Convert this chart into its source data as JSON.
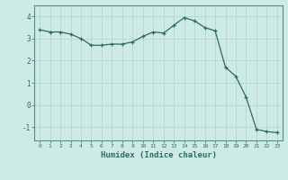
{
  "x": [
    0,
    1,
    2,
    3,
    4,
    5,
    6,
    7,
    8,
    9,
    10,
    11,
    12,
    13,
    14,
    15,
    16,
    17,
    18,
    19,
    20,
    21,
    22,
    23
  ],
  "y": [
    3.4,
    3.3,
    3.3,
    3.2,
    3.0,
    2.7,
    2.7,
    2.75,
    2.75,
    2.85,
    3.1,
    3.3,
    3.25,
    3.6,
    3.95,
    3.8,
    3.5,
    3.35,
    1.7,
    1.3,
    0.35,
    -1.1,
    -1.2,
    -1.25
  ],
  "xlabel": "Humidex (Indice chaleur)",
  "xlim": [
    -0.5,
    23.5
  ],
  "ylim": [
    -1.6,
    4.5
  ],
  "yticks": [
    -1,
    0,
    1,
    2,
    3,
    4
  ],
  "xticks": [
    0,
    1,
    2,
    3,
    4,
    5,
    6,
    7,
    8,
    9,
    10,
    11,
    12,
    13,
    14,
    15,
    16,
    17,
    18,
    19,
    20,
    21,
    22,
    23
  ],
  "line_color": "#2d6b5e",
  "bg_color": "#ceeae6",
  "grid_color": "#afd4ce",
  "label_color": "#2d6b5e",
  "spine_color": "#5a8a80"
}
